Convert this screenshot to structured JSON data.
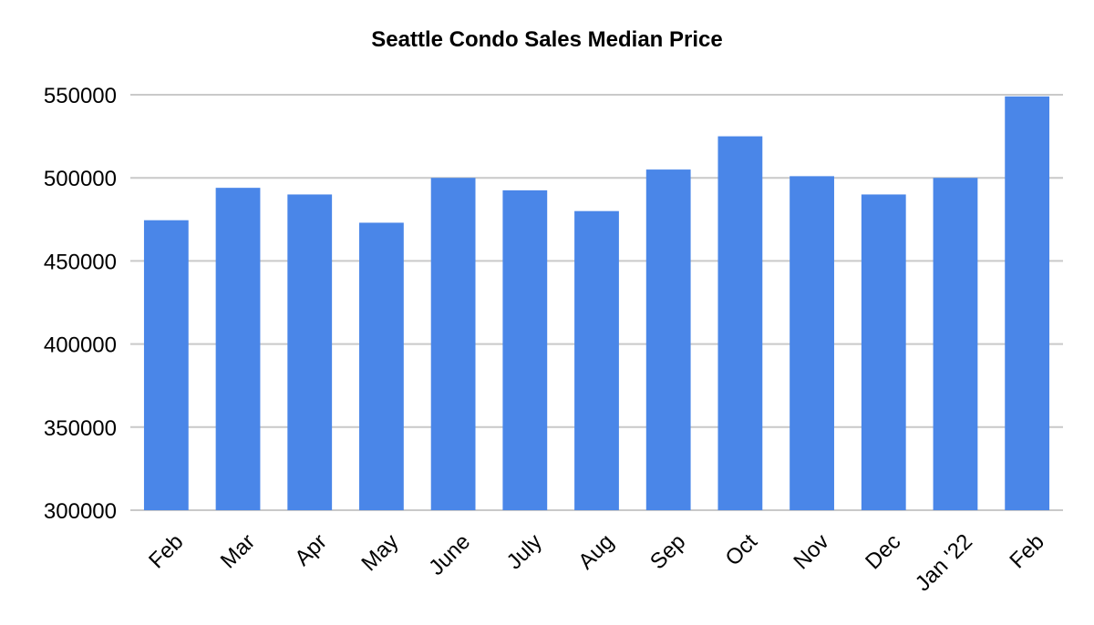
{
  "chart_data": {
    "type": "bar",
    "title": "Seattle Condo Sales Median Price",
    "xlabel": "",
    "ylabel": "",
    "categories": [
      "Feb",
      "Mar",
      "Apr",
      "May",
      "June",
      "July",
      "Aug",
      "Sep",
      "Oct",
      "Nov",
      "Dec",
      "Jan '22",
      "Feb"
    ],
    "values": [
      474500,
      494000,
      490000,
      473000,
      500000,
      492500,
      480000,
      505000,
      525000,
      501000,
      490000,
      500000,
      549000
    ],
    "ylim": [
      300000,
      550000
    ],
    "yticks": [
      300000,
      350000,
      400000,
      450000,
      500000,
      550000
    ],
    "ytick_labels": [
      "300000",
      "350000",
      "400000",
      "450000",
      "500000",
      "550000"
    ],
    "grid": true,
    "legend": "none",
    "bar_color": "#4a86e8"
  }
}
